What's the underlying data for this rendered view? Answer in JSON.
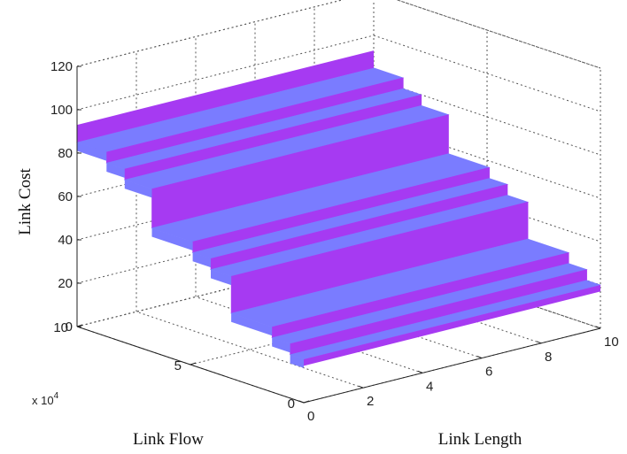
{
  "chart_data": {
    "type": "surface",
    "zlabel": "Link Cost",
    "xlabel": "Link Flow",
    "ylabel": "Link Length",
    "x_scale_label": "x 10^4",
    "x_scale_base": "x 10",
    "x_scale_exp": "4",
    "x_range": [
      0,
      10
    ],
    "x_ticks": [
      "0",
      "5",
      "10"
    ],
    "y_range": [
      0,
      10
    ],
    "y_ticks": [
      "0",
      "2",
      "4",
      "6",
      "8",
      "10"
    ],
    "z_range": [
      0,
      120
    ],
    "z_ticks": [
      "0",
      "20",
      "40",
      "60",
      "80",
      "100",
      "120"
    ],
    "grid": true,
    "colors": {
      "riser": "#a63af2",
      "tread": "#7a7cff"
    },
    "link_length": [
      0,
      10
    ],
    "steps": [
      {
        "x_start": 0.0,
        "x_end": 0.6,
        "cost": 20
      },
      {
        "x_start": 0.6,
        "x_end": 1.4,
        "cost": 25
      },
      {
        "x_start": 1.4,
        "x_end": 3.2,
        "cost": 30
      },
      {
        "x_start": 3.2,
        "x_end": 4.1,
        "cost": 47
      },
      {
        "x_start": 4.1,
        "x_end": 4.9,
        "cost": 52
      },
      {
        "x_start": 4.9,
        "x_end": 6.7,
        "cost": 57
      },
      {
        "x_start": 6.7,
        "x_end": 7.9,
        "cost": 75
      },
      {
        "x_start": 7.9,
        "x_end": 8.7,
        "cost": 80
      },
      {
        "x_start": 8.7,
        "x_end": 10.0,
        "cost": 85
      }
    ]
  }
}
